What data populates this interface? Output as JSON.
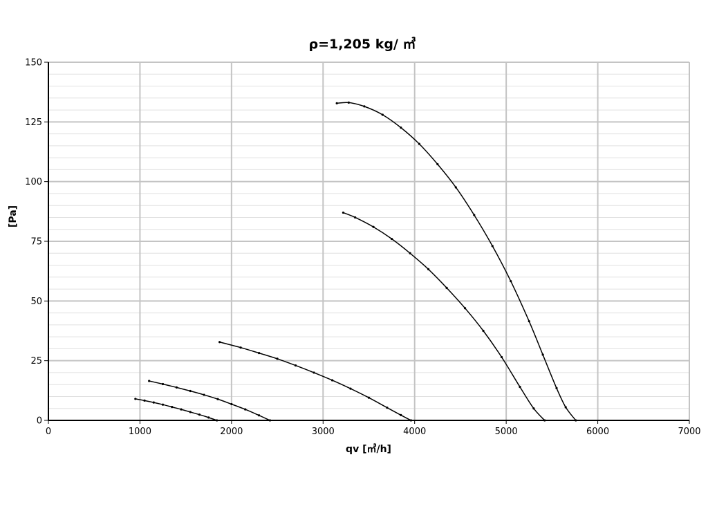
{
  "chart_data": {
    "type": "line",
    "title": "ρ=1,205 kg/ ㎥",
    "xlabel": "qv [㎥/h]",
    "ylabel": "[Pa]",
    "xlim": [
      0,
      7000
    ],
    "ylim": [
      0,
      150
    ],
    "x_ticks": [
      0,
      1000,
      2000,
      3000,
      4000,
      5000,
      6000,
      7000
    ],
    "y_ticks": [
      0,
      25,
      50,
      75,
      100,
      125,
      150
    ],
    "x_minor_step": 1000,
    "y_minor_step": 5,
    "grid": true,
    "legend": "none",
    "series": [
      {
        "x": [
          950,
          1050,
          1150,
          1250,
          1350,
          1450,
          1550,
          1650,
          1750,
          1840
        ],
        "y": [
          9.0,
          8.3,
          7.5,
          6.6,
          5.6,
          4.6,
          3.5,
          2.4,
          1.2,
          0
        ]
      },
      {
        "x": [
          1100,
          1250,
          1400,
          1550,
          1700,
          1850,
          2000,
          2150,
          2300,
          2420
        ],
        "y": [
          16.5,
          15.2,
          13.8,
          12.3,
          10.7,
          8.9,
          6.8,
          4.6,
          2.1,
          0
        ]
      },
      {
        "x": [
          1870,
          2100,
          2300,
          2500,
          2700,
          2900,
          3100,
          3300,
          3500,
          3700,
          3850,
          3960
        ],
        "y": [
          32.8,
          30.5,
          28.2,
          25.8,
          23.0,
          20.0,
          16.8,
          13.3,
          9.5,
          5.3,
          2.2,
          0
        ]
      },
      {
        "x": [
          3220,
          3350,
          3550,
          3750,
          3950,
          4150,
          4350,
          4550,
          4750,
          4950,
          5150,
          5300,
          5420
        ],
        "y": [
          87.0,
          85.0,
          81.0,
          76.0,
          70.0,
          63.3,
          55.5,
          47.0,
          37.5,
          26.5,
          14.0,
          5.0,
          0
        ]
      },
      {
        "x": [
          3150,
          3280,
          3450,
          3650,
          3850,
          4050,
          4250,
          4450,
          4650,
          4850,
          5050,
          5250,
          5400,
          5550,
          5650,
          5760
        ],
        "y": [
          132.8,
          133.1,
          131.5,
          128.0,
          122.6,
          115.8,
          107.3,
          97.6,
          86.0,
          73.0,
          58.3,
          41.5,
          27.5,
          13.5,
          5.5,
          0
        ]
      }
    ]
  }
}
